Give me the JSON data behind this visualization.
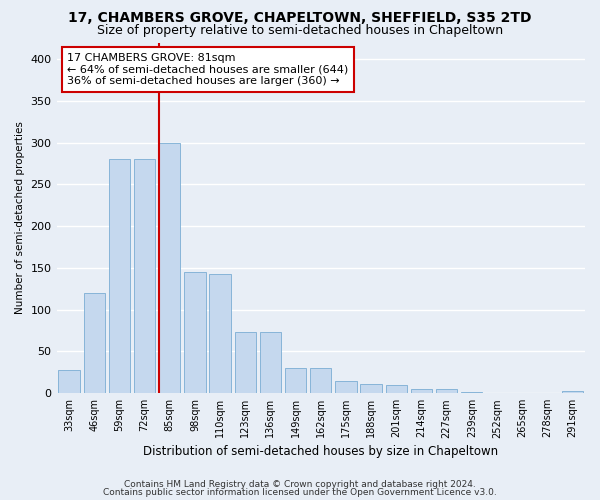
{
  "title": "17, CHAMBERS GROVE, CHAPELTOWN, SHEFFIELD, S35 2TD",
  "subtitle": "Size of property relative to semi-detached houses in Chapeltown",
  "xlabel": "Distribution of semi-detached houses by size in Chapeltown",
  "ylabel": "Number of semi-detached properties",
  "footer_line1": "Contains HM Land Registry data © Crown copyright and database right 2024.",
  "footer_line2": "Contains public sector information licensed under the Open Government Licence v3.0.",
  "categories": [
    "33sqm",
    "46sqm",
    "59sqm",
    "72sqm",
    "85sqm",
    "98sqm",
    "110sqm",
    "123sqm",
    "136sqm",
    "149sqm",
    "162sqm",
    "175sqm",
    "188sqm",
    "201sqm",
    "214sqm",
    "227sqm",
    "239sqm",
    "252sqm",
    "265sqm",
    "278sqm",
    "291sqm"
  ],
  "values": [
    28,
    120,
    280,
    280,
    300,
    145,
    143,
    73,
    73,
    30,
    30,
    15,
    11,
    10,
    5,
    5,
    1,
    0,
    0,
    0,
    3
  ],
  "bar_color": "#c5d8ee",
  "bar_edge_color": "#7aadd4",
  "vline_index": 4,
  "vline_color": "#cc0000",
  "annotation_text": "17 CHAMBERS GROVE: 81sqm\n← 64% of semi-detached houses are smaller (644)\n36% of semi-detached houses are larger (360) →",
  "annotation_box_color": "#ffffff",
  "annotation_box_edge": "#cc0000",
  "ylim": [
    0,
    420
  ],
  "yticks": [
    0,
    50,
    100,
    150,
    200,
    250,
    300,
    350,
    400
  ],
  "background_color": "#e8eef6",
  "plot_bg_color": "#e8eef6",
  "grid_color": "#ffffff",
  "title_fontsize": 10,
  "subtitle_fontsize": 9
}
